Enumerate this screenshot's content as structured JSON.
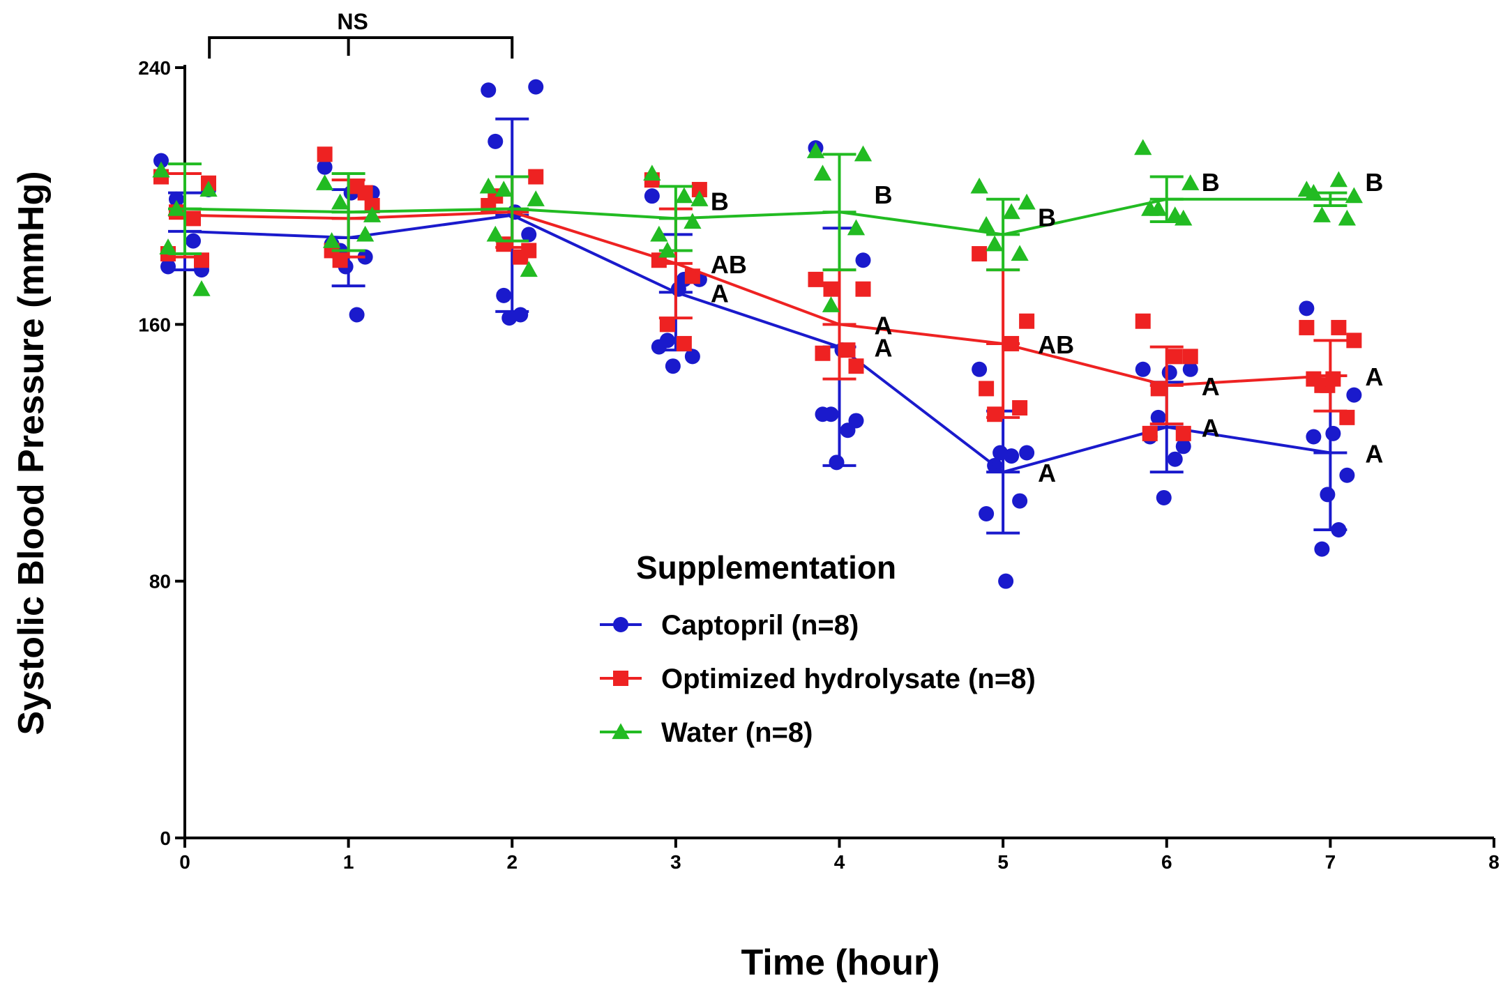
{
  "chart_data": {
    "type": "line",
    "title": "",
    "xlabel": "Time (hour)",
    "ylabel": "Systolic Blood Pressure (mmHg)",
    "xlim": [
      0,
      8
    ],
    "ylim": [
      0,
      240
    ],
    "x_ticks": [
      0,
      1,
      2,
      3,
      4,
      5,
      6,
      7,
      8
    ],
    "y_ticks": [
      0,
      80,
      160,
      240
    ],
    "x": [
      0,
      1,
      2,
      3,
      4,
      5,
      6,
      7
    ],
    "legend": {
      "title": "Supplementation",
      "position": "center"
    },
    "series": [
      {
        "name": "Captopril (n=8)",
        "color": "#1a1acc",
        "marker": "circle",
        "means": [
          189,
          187,
          194,
          170,
          153,
          114,
          128,
          120
        ],
        "sd": [
          12,
          15,
          30,
          18,
          37,
          19,
          14,
          24
        ],
        "points": [
          [
            211,
            202,
            178,
            177,
            199,
            186
          ],
          [
            209,
            201,
            185,
            181,
            183,
            163,
            178,
            201
          ],
          [
            233,
            234,
            217,
            188,
            169,
            163,
            162,
            195
          ],
          [
            200,
            174,
            153,
            150,
            155,
            174,
            147,
            171
          ],
          [
            215,
            180,
            132,
            130,
            132,
            127,
            117,
            152
          ],
          [
            146,
            120,
            101,
            105,
            116,
            119,
            120,
            80
          ],
          [
            146,
            146,
            125,
            122,
            131,
            118,
            106,
            145
          ],
          [
            165,
            138,
            125,
            113,
            90,
            96,
            107,
            126
          ]
        ],
        "sig_labels": [
          "",
          "",
          "",
          "A",
          "A",
          "A",
          "A",
          "A"
        ]
      },
      {
        "name": "Optimized hydrolysate (n=8)",
        "color": "#ee2222",
        "marker": "square",
        "means": [
          194,
          193,
          195,
          179,
          160,
          154,
          141,
          144
        ],
        "sd": [
          13,
          12,
          11,
          17,
          17,
          23,
          12,
          11
        ],
        "points": [
          [
            206,
            204,
            182,
            180,
            195,
            193
          ],
          [
            213,
            197,
            183,
            201,
            180,
            203
          ],
          [
            197,
            206,
            200,
            183,
            185,
            181
          ],
          [
            205,
            202,
            180,
            175,
            160,
            154
          ],
          [
            174,
            171,
            151,
            147,
            171,
            152
          ],
          [
            182,
            161,
            140,
            134,
            132,
            154
          ],
          [
            161,
            150,
            126,
            126,
            140,
            150
          ],
          [
            159,
            155,
            143,
            131,
            141,
            159,
            141,
            143
          ]
        ],
        "sig_labels": [
          "",
          "",
          "",
          "AB",
          "A",
          "AB",
          "A",
          "A"
        ]
      },
      {
        "name": "Water (n=8)",
        "color": "#22bb22",
        "marker": "triangle",
        "means": [
          196,
          195,
          196,
          193,
          195,
          188,
          199,
          199
        ],
        "sd": [
          14,
          12,
          10,
          10,
          18,
          11,
          7,
          2
        ],
        "points": [
          [
            208,
            202,
            184,
            171,
            196
          ],
          [
            204,
            194,
            186,
            188,
            198
          ],
          [
            203,
            199,
            188,
            177,
            202
          ],
          [
            207,
            199,
            188,
            192,
            183,
            200
          ],
          [
            214,
            213,
            207,
            190,
            166
          ],
          [
            203,
            198,
            191,
            182,
            185,
            195
          ],
          [
            215,
            204,
            196,
            193,
            196,
            194
          ],
          [
            202,
            200,
            201,
            193,
            194,
            205
          ]
        ],
        "sig_labels": [
          "",
          "",
          "",
          "B",
          "B",
          "B",
          "B",
          "B"
        ]
      }
    ],
    "annotations": {
      "ns_label": "NS",
      "ns_bracket_x": [
        0.15,
        2
      ]
    }
  }
}
